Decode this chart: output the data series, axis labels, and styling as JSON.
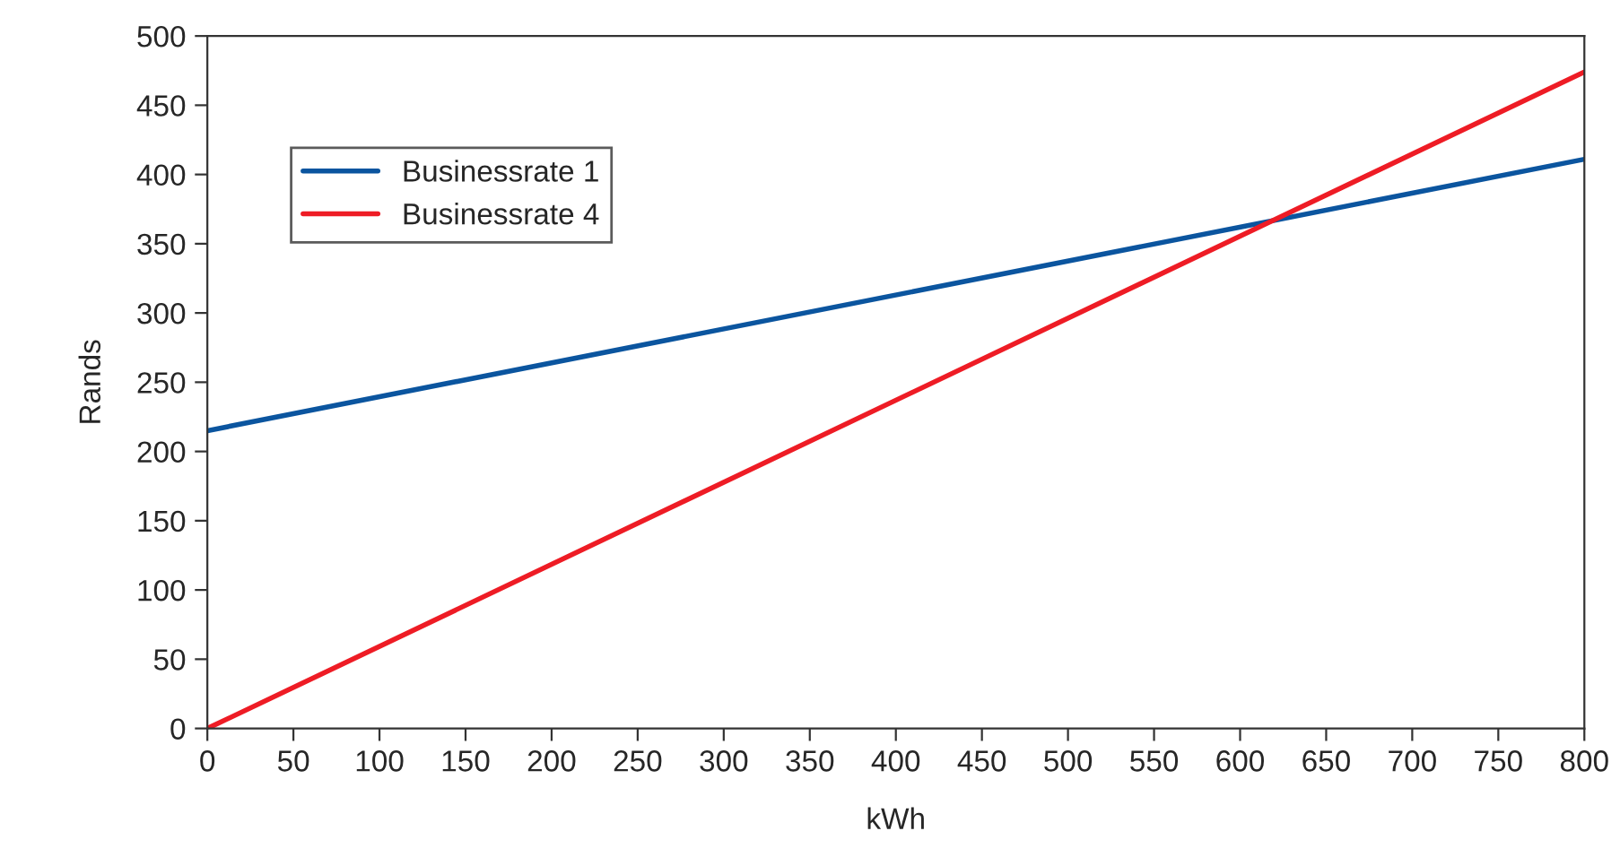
{
  "chart_data": {
    "type": "line",
    "xlabel": "kWh",
    "ylabel": "Rands",
    "x": [
      0,
      800
    ],
    "series": [
      {
        "name": "Businessrate 1",
        "color": "#0b559f",
        "values": [
          215,
          411
        ]
      },
      {
        "name": "Businessrate 4",
        "color": "#ee1c25",
        "values": [
          0,
          474
        ]
      }
    ],
    "xlim": [
      0,
      800
    ],
    "xticks": [
      0,
      50,
      100,
      150,
      200,
      250,
      300,
      350,
      400,
      450,
      500,
      550,
      600,
      650,
      700,
      750,
      800
    ],
    "ylim": [
      0,
      500
    ],
    "yticks": [
      0,
      50,
      100,
      150,
      200,
      250,
      300,
      350,
      400,
      450,
      500
    ],
    "grid": false,
    "legend": "top left",
    "marker": "none",
    "line_style": "solid"
  }
}
